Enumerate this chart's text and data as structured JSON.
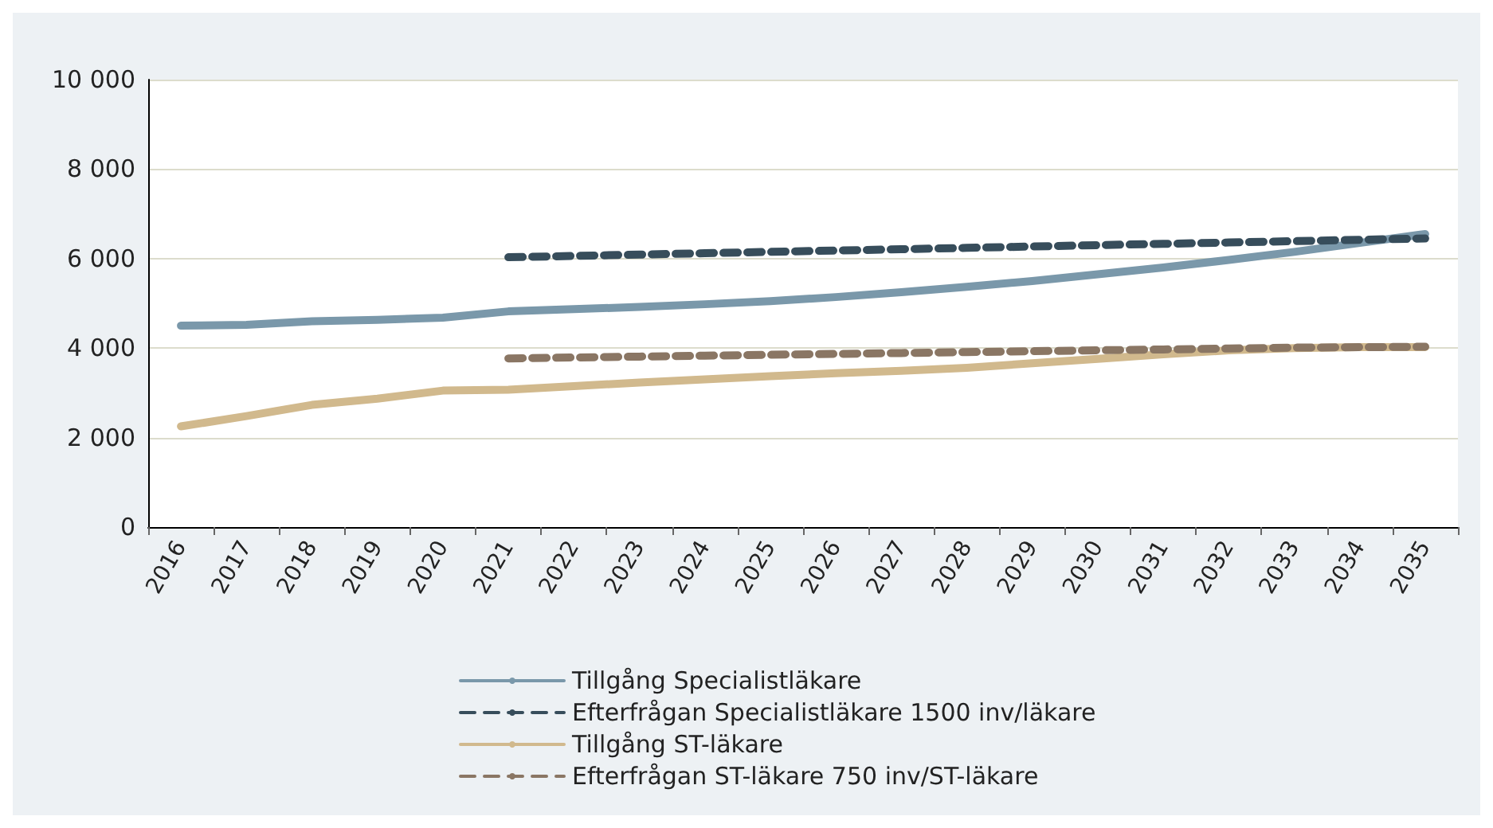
{
  "chart_data": {
    "type": "line",
    "categories": [
      "2016",
      "2017",
      "2018",
      "2019",
      "2020",
      "2021",
      "2022",
      "2023",
      "2024",
      "2025",
      "2026",
      "2027",
      "2028",
      "2029",
      "2030",
      "2031",
      "2032",
      "2033",
      "2034",
      "2035"
    ],
    "series": [
      {
        "name": "Tillgång Specialistläkare",
        "color": "#7a98aa",
        "line_style": "solid",
        "values": [
          4500,
          4520,
          4600,
          4630,
          4680,
          4820,
          4870,
          4920,
          4980,
          5050,
          5140,
          5250,
          5370,
          5500,
          5650,
          5800,
          5970,
          6150,
          6350,
          6550
        ]
      },
      {
        "name": "Efterfrågan Specialistläkare 1500 inv/läkare",
        "color": "#374d5b",
        "line_style": "dashed",
        "values": [
          null,
          null,
          null,
          null,
          null,
          6030,
          6060,
          6090,
          6120,
          6150,
          6180,
          6210,
          6240,
          6270,
          6300,
          6330,
          6360,
          6390,
          6420,
          6450
        ]
      },
      {
        "name": "Tillgång ST-läkare",
        "color": "#d1b98d",
        "line_style": "solid",
        "values": [
          2250,
          2480,
          2730,
          2870,
          3050,
          3070,
          3150,
          3230,
          3300,
          3370,
          3440,
          3490,
          3560,
          3660,
          3760,
          3860,
          3950,
          4000,
          4020,
          4020
        ]
      },
      {
        "name": "Efterfrågan ST-läkare 750 inv/ST-läkare",
        "color": "#8a7664",
        "line_style": "dashed",
        "values": [
          null,
          null,
          null,
          null,
          null,
          3770,
          3790,
          3810,
          3830,
          3850,
          3870,
          3890,
          3910,
          3930,
          3950,
          3970,
          3990,
          4010,
          4020,
          4030
        ]
      }
    ],
    "ylim": [
      0,
      10000
    ],
    "yticks": [
      0,
      {
        "value": 2000,
        "label": "2 000"
      },
      {
        "value": 4000,
        "label": "4 000"
      },
      {
        "value": 6000,
        "label": "6 000"
      },
      {
        "value": 8000,
        "label": "8 000"
      },
      {
        "value": 10000,
        "label": "10 000"
      }
    ],
    "grid": "y",
    "legend": "bottom",
    "marker": "none"
  }
}
